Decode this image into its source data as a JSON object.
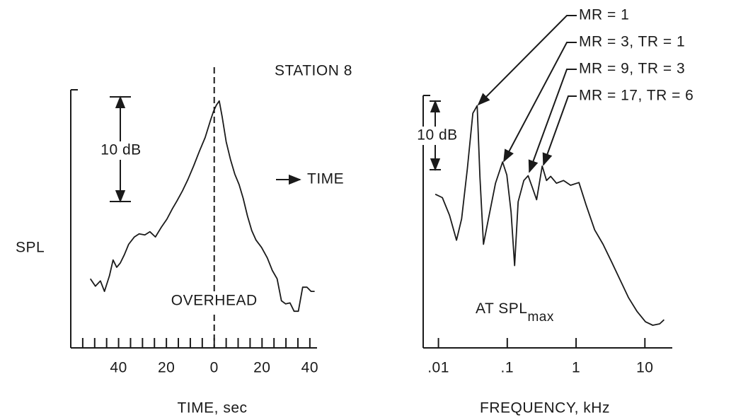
{
  "title": "STATION 8",
  "chart_data": [
    {
      "type": "line",
      "xlabel": "TIME, sec",
      "ylabel": "SPL",
      "xlim": [
        -60,
        43
      ],
      "ylim": [
        0,
        25
      ],
      "xticks": [
        {
          "value": -40,
          "label": "40"
        },
        {
          "value": -20,
          "label": "20"
        },
        0,
        20,
        40
      ],
      "minor_xticks": [
        -55,
        -50,
        -45,
        -35,
        -30,
        -25,
        -15,
        -10,
        -5,
        5,
        10,
        15,
        25,
        30,
        35
      ],
      "x": [
        -51.8,
        -49.7,
        -47.6,
        -45.9,
        -43.8,
        -42.3,
        -40.8,
        -39.3,
        -37.6,
        -35.8,
        -33.4,
        -31.4,
        -29.0,
        -26.9,
        -24.6,
        -22.2,
        -19.8,
        -17.5,
        -15.7,
        -13.3,
        -11.0,
        -8.6,
        -6.2,
        -3.8,
        -1.5,
        -0.3,
        0.9,
        2.1,
        3.3,
        5.0,
        6.8,
        8.6,
        10.4,
        12.1,
        13.9,
        15.7,
        17.5,
        19.8,
        22.2,
        24.3,
        26.3,
        28.1,
        29.9,
        31.7,
        33.4,
        35.2,
        37.0,
        38.8,
        40.5,
        42.0
      ],
      "series": [
        {
          "color": "#1a1a1a",
          "values": [
            6.6,
            5.9,
            6.4,
            5.4,
            6.9,
            8.4,
            7.7,
            8.1,
            8.9,
            9.9,
            10.6,
            10.9,
            10.8,
            11.1,
            10.6,
            11.5,
            12.3,
            13.3,
            14.0,
            15.0,
            16.1,
            17.4,
            18.8,
            20.1,
            21.8,
            22.6,
            23.2,
            23.6,
            22.1,
            19.7,
            18.0,
            16.6,
            15.6,
            14.3,
            12.6,
            11.2,
            10.3,
            9.6,
            8.6,
            7.4,
            6.6,
            4.5,
            4.2,
            4.3,
            3.5,
            3.5,
            5.8,
            5.8,
            5.4,
            5.4
          ]
        }
      ],
      "scale_bar": {
        "value": 10,
        "label": "10 dB"
      },
      "overhead": {
        "x": 0,
        "label": "OVERHEAD"
      },
      "direction_label": "TIME"
    },
    {
      "type": "line",
      "xscale": "log",
      "xlabel": "FREQUENCY, kHz",
      "xlim": [
        0.006,
        25
      ],
      "ylim": [
        0,
        37
      ],
      "xticks": [
        {
          "value": 0.01,
          "label": ".01"
        },
        {
          "value": 0.1,
          "label": ".1"
        },
        1,
        10
      ],
      "x": [
        0.009,
        0.0114,
        0.0145,
        0.0183,
        0.0217,
        0.0262,
        0.0316,
        0.0365,
        0.0401,
        0.0451,
        0.0533,
        0.0675,
        0.0855,
        0.0986,
        0.1137,
        0.128,
        0.144,
        0.174,
        0.201,
        0.231,
        0.267,
        0.322,
        0.372,
        0.428,
        0.518,
        0.656,
        0.832,
        1.1,
        1.4,
        1.86,
        2.47,
        3.29,
        4.37,
        5.8,
        7.71,
        10.2,
        13.0,
        16.4,
        19.0
      ],
      "series": [
        {
          "color": "#1a1a1a",
          "values": [
            22.4,
            21.9,
            19.3,
            15.7,
            18.8,
            26.0,
            34.2,
            35.3,
            24.9,
            15.1,
            18.8,
            24.0,
            27.1,
            25.2,
            19.8,
            12.0,
            21.3,
            24.4,
            25.1,
            23.4,
            21.6,
            26.5,
            24.4,
            25.0,
            24.0,
            24.4,
            23.7,
            24.1,
            20.8,
            17.2,
            15.1,
            12.5,
            9.9,
            7.3,
            5.3,
            3.8,
            3.3,
            3.5,
            4.1
          ]
        }
      ],
      "scale_bar": {
        "value": 10,
        "label": "10 dB"
      },
      "note": {
        "text": "AT SPL",
        "subscript": "max"
      },
      "annotations": [
        "MR = 1",
        "MR = 3, TR = 1",
        "MR = 9, TR = 3",
        "MR = 17, TR = 6"
      ]
    }
  ]
}
